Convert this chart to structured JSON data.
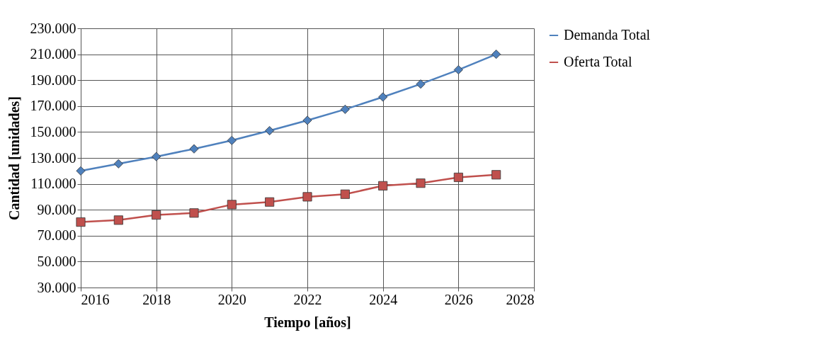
{
  "chart_data": {
    "type": "line",
    "xlabel": "Tiempo [años]",
    "ylabel": "Cantidad [unidades]",
    "x": [
      2016,
      2017,
      2018,
      2019,
      2020,
      2021,
      2022,
      2023,
      2024,
      2025,
      2026,
      2027
    ],
    "series": [
      {
        "name": "Demanda Total",
        "color": "#4f81bd",
        "marker": "diamond",
        "values": [
          120000,
          125500,
          131000,
          137000,
          143500,
          151000,
          159000,
          167500,
          177000,
          187000,
          198000,
          210000
        ]
      },
      {
        "name": "Oferta Total",
        "color": "#c0504d",
        "marker": "square",
        "values": [
          80500,
          82000,
          86000,
          87500,
          94000,
          96000,
          100000,
          102000,
          108500,
          110500,
          115000,
          117000
        ]
      }
    ],
    "xlim": [
      2016,
      2028
    ],
    "xticks": [
      2016,
      2018,
      2020,
      2022,
      2024,
      2026,
      2028
    ],
    "ylim": [
      30000,
      230000
    ],
    "yticks": [
      {
        "value": 30000,
        "label": "30.000"
      },
      {
        "value": 50000,
        "label": "50.000"
      },
      {
        "value": 70000,
        "label": "70.000"
      },
      {
        "value": 90000,
        "label": "90.000"
      },
      {
        "value": 110000,
        "label": "110.000"
      },
      {
        "value": 130000,
        "label": "130.000"
      },
      {
        "value": 150000,
        "label": "150.000"
      },
      {
        "value": 170000,
        "label": "170.000"
      },
      {
        "value": 190000,
        "label": "190.000"
      },
      {
        "value": 210000,
        "label": "210.000"
      },
      {
        "value": 230000,
        "label": "230.000"
      }
    ],
    "grid": true,
    "legend": "right",
    "line_style": "solid"
  }
}
